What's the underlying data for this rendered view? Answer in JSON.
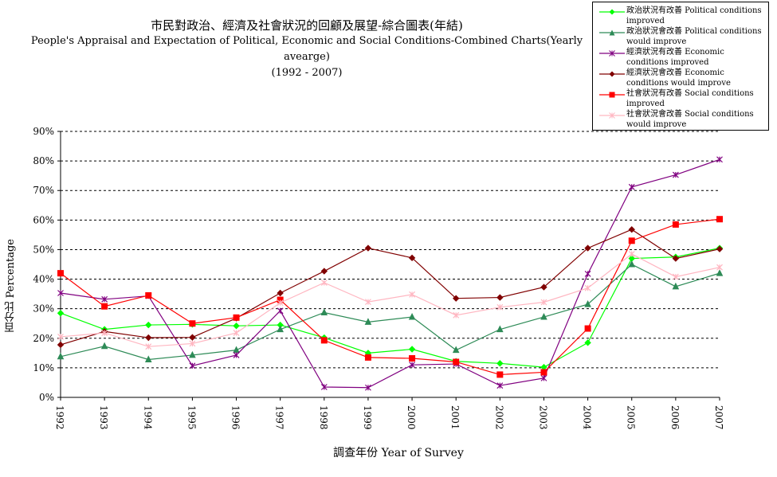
{
  "chart_data": {
    "type": "line",
    "title_zh": "市民對政治、經濟及社會狀況的回顧及展望-綜合圖表(年結)",
    "title_en": "People's Appraisal and Expectation of Political, Economic and Social Conditions-Combined Charts(Yearly avearge)",
    "subtitle": "(1992 - 2007)",
    "xlabel": "調查年份 Year of Survey",
    "ylabel": "百分比 Percentage",
    "ylim": [
      0,
      90
    ],
    "yticks": [
      "0%",
      "10%",
      "20%",
      "30%",
      "40%",
      "50%",
      "60%",
      "70%",
      "80%",
      "90%"
    ],
    "grid": true,
    "legend_position": "top-right",
    "categories": [
      "1992",
      "1993",
      "1994",
      "1995",
      "1996",
      "1997",
      "1998",
      "1999",
      "2000",
      "2001",
      "2002",
      "2003",
      "2004",
      "2005",
      "2006",
      "2007"
    ],
    "series": [
      {
        "name": "政治狀況有改善 Political conditions improved",
        "color": "#00ff00",
        "marker": "diamond",
        "values": [
          28.5,
          23,
          24.5,
          24.7,
          24.2,
          24.5,
          20.2,
          15,
          16.3,
          12.2,
          11.5,
          10.2,
          18.5,
          47,
          47.5,
          50.5
        ]
      },
      {
        "name": "政治狀況會改善 Political conditions would improve",
        "color": "#2e8b57",
        "marker": "triangle",
        "values": [
          13.8,
          17.3,
          12.8,
          14.3,
          16,
          23,
          28.7,
          25.5,
          27.2,
          16,
          23,
          27.2,
          31.5,
          45,
          37.5,
          42
        ]
      },
      {
        "name": "經濟狀況有改善 Economic conditions improved",
        "color": "#800080",
        "marker": "star",
        "values": [
          35.3,
          33.2,
          34.3,
          10.7,
          14.3,
          29.3,
          3.5,
          3.3,
          11,
          11.3,
          4,
          6.5,
          41.8,
          71.2,
          75.3,
          80.5
        ]
      },
      {
        "name": "經濟狀況會改善 Economic conditions would improve",
        "color": "#800000",
        "marker": "diamond",
        "values": [
          17.8,
          22.3,
          20.2,
          20.3,
          26.8,
          35.3,
          42.7,
          50.5,
          47.2,
          33.5,
          33.8,
          37.3,
          50.5,
          56.8,
          47,
          50.2
        ]
      },
      {
        "name": "社會狀況有改善 Social conditions improved",
        "color": "#ff0000",
        "marker": "square",
        "values": [
          42,
          30.8,
          34.5,
          25,
          27,
          33,
          19.3,
          13.5,
          13.2,
          12,
          7.7,
          8.5,
          23.3,
          53,
          58.5,
          60.3
        ]
      },
      {
        "name": "社會狀況會改善 Social conditions would improve",
        "color": "#ffb6c1",
        "marker": "star",
        "values": [
          20.5,
          21.8,
          17.2,
          18.2,
          21.8,
          32,
          38.8,
          32.3,
          34.8,
          27.8,
          30.5,
          32.2,
          37,
          48.5,
          40.8,
          44
        ]
      }
    ]
  }
}
